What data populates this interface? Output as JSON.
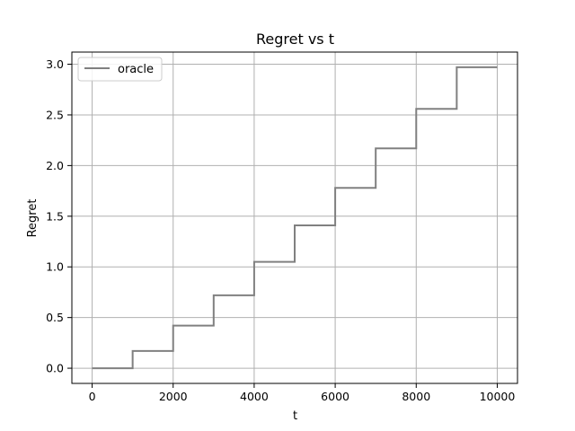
{
  "chart_data": {
    "type": "line",
    "title": "Regret vs t",
    "xlabel": "t",
    "ylabel": "Regret",
    "xlim": [
      -500,
      10500
    ],
    "ylim": [
      -0.15,
      3.12
    ],
    "x_ticks": [
      0,
      2000,
      4000,
      6000,
      8000,
      10000
    ],
    "x_tick_labels": [
      "0",
      "2000",
      "4000",
      "6000",
      "8000",
      "10000"
    ],
    "y_ticks": [
      0.0,
      0.5,
      1.0,
      1.5,
      2.0,
      2.5,
      3.0
    ],
    "y_tick_labels": [
      "0.0",
      "0.5",
      "1.0",
      "1.5",
      "2.0",
      "2.5",
      "3.0"
    ],
    "grid": true,
    "legend": "top-left",
    "series": [
      {
        "name": "oracle",
        "color": "#808080",
        "step": true,
        "x": [
          0,
          1000,
          2000,
          3000,
          4000,
          5000,
          6000,
          7000,
          8000,
          9000,
          10000
        ],
        "y": [
          0.0,
          0.17,
          0.42,
          0.72,
          1.05,
          1.41,
          1.78,
          2.17,
          2.56,
          2.97,
          2.97
        ]
      }
    ]
  }
}
